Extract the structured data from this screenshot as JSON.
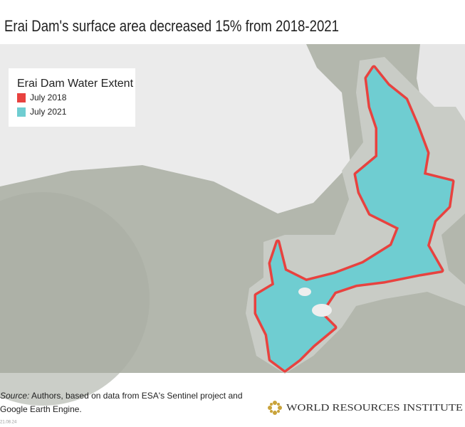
{
  "title": "Erai Dam's surface area decreased 15% from 2018-2021",
  "legend": {
    "title": "Erai Dam Water Extent",
    "items": [
      {
        "label": "July 2018",
        "color": "#e8423f"
      },
      {
        "label": "July 2021",
        "color": "#6fcdd1"
      }
    ]
  },
  "source": {
    "lead": "Source:",
    "line1": " Authors, based on data from ESA's Sentinel project and",
    "line2": "Google Earth Engine."
  },
  "logo": {
    "text": "WORLD RESOURCES INSTITUTE"
  },
  "date": "21.08.24"
}
